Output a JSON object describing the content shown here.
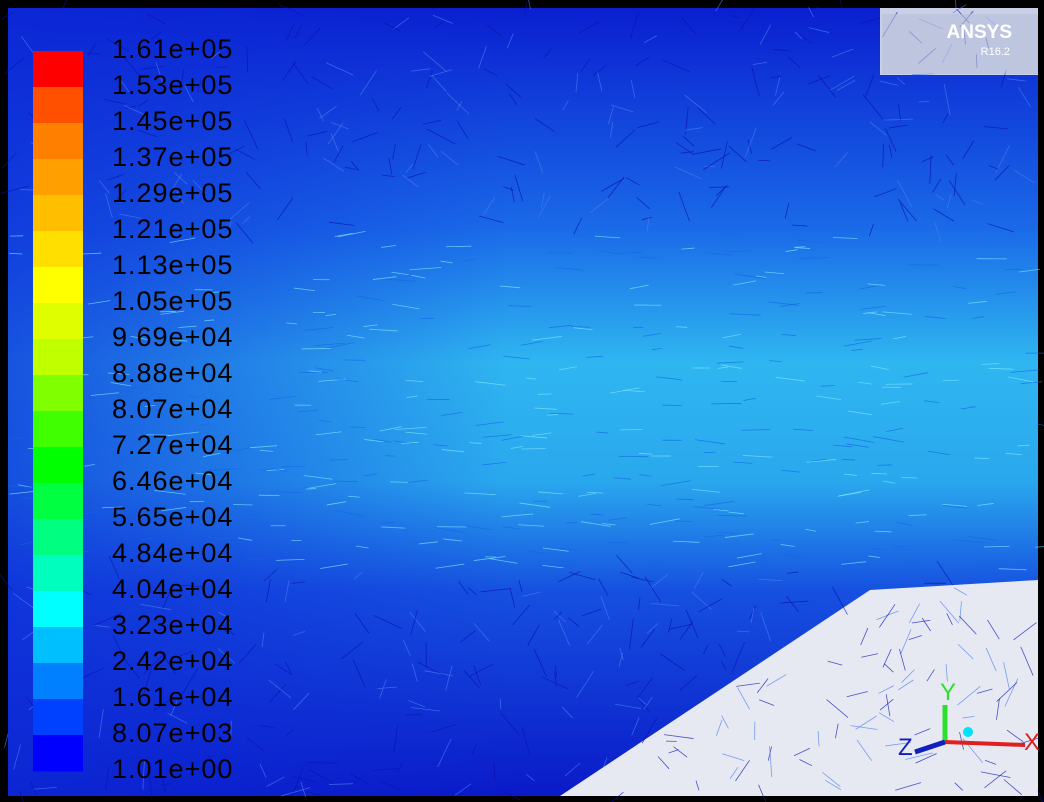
{
  "logo": {
    "name": "ANSYS",
    "version": "R16.2"
  },
  "legend": {
    "labels": [
      "1.61e+05",
      "1.53e+05",
      "1.45e+05",
      "1.37e+05",
      "1.29e+05",
      "1.21e+05",
      "1.13e+05",
      "1.05e+05",
      "9.69e+04",
      "8.88e+04",
      "8.07e+04",
      "7.27e+04",
      "6.46e+04",
      "5.65e+04",
      "4.84e+04",
      "4.04e+04",
      "3.23e+04",
      "2.42e+04",
      "1.61e+04",
      "8.07e+03",
      "1.01e+00"
    ],
    "colors": [
      "#ff0000",
      "#ff5000",
      "#ff8000",
      "#ffa000",
      "#ffbf00",
      "#ffdf00",
      "#ffff00",
      "#dfff00",
      "#bfff00",
      "#80ff00",
      "#40ff00",
      "#00ff00",
      "#00ff40",
      "#00ff80",
      "#00ffbf",
      "#00ffff",
      "#00bfff",
      "#0080ff",
      "#0040ff",
      "#0000ff"
    ]
  },
  "triad": {
    "x": "X",
    "y": "Y",
    "z": "Z"
  }
}
